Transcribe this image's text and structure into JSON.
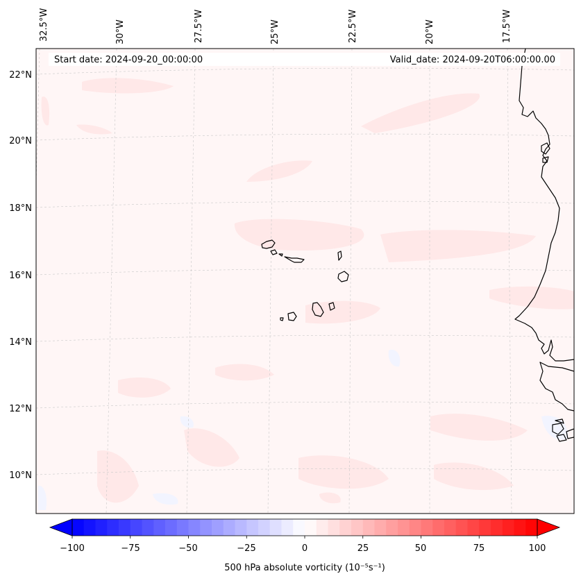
{
  "header": {
    "start_date": "Start date: 2024-09-20_00:00:00",
    "valid_date": "Valid_date: 2024-09-20T06:00:00.00"
  },
  "map": {
    "longitude_labels": [
      "32.5°W",
      "30°W",
      "27.5°W",
      "25°W",
      "22.5°W",
      "20°W",
      "17.5°W"
    ],
    "latitude_labels": [
      "22°N",
      "20°N",
      "18°N",
      "16°N",
      "14°N",
      "12°N",
      "10°N"
    ]
  },
  "colorbar": {
    "label": "500 hPa absolute vorticity (10⁻⁵s⁻¹)",
    "tick_labels": [
      "−100",
      "−75",
      "−50",
      "−25",
      "0",
      "25",
      "50",
      "75",
      "100"
    ],
    "min": -100,
    "max": 100,
    "colors": {
      "negative": "#0000ff",
      "zero": "#ffffff",
      "positive": "#ff0000"
    }
  }
}
